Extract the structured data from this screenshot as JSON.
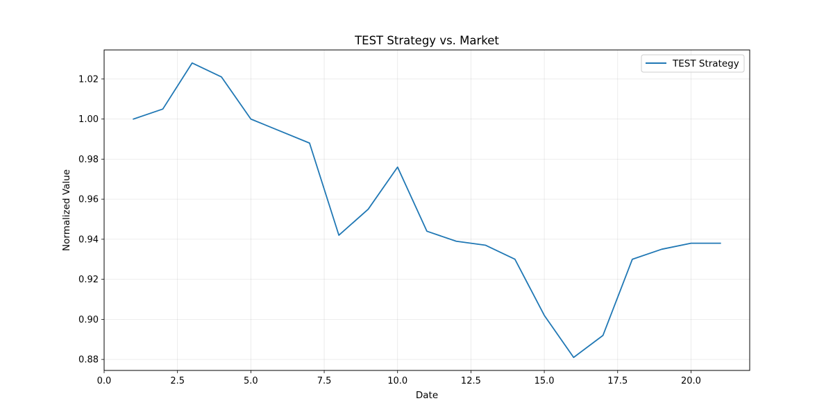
{
  "chart_data": {
    "type": "line",
    "title": "TEST Strategy vs. Market",
    "xlabel": "Date",
    "ylabel": "Normalized Value",
    "xlim": [
      0,
      22
    ],
    "ylim": [
      0.8745,
      1.0345
    ],
    "xticks": [
      0.0,
      2.5,
      5.0,
      7.5,
      10.0,
      12.5,
      15.0,
      17.5,
      20.0
    ],
    "xtick_labels": [
      "0.0",
      "2.5",
      "5.0",
      "7.5",
      "10.0",
      "12.5",
      "15.0",
      "17.5",
      "20.0"
    ],
    "yticks": [
      0.88,
      0.9,
      0.92,
      0.94,
      0.96,
      0.98,
      1.0,
      1.02
    ],
    "ytick_labels": [
      "0.88",
      "0.90",
      "0.92",
      "0.94",
      "0.96",
      "0.98",
      "1.00",
      "1.02"
    ],
    "grid": true,
    "legend_position": "top-right",
    "series": [
      {
        "name": "TEST Strategy",
        "color": "#1f77b4",
        "x": [
          1,
          2,
          3,
          4,
          5,
          6,
          7,
          8,
          9,
          10,
          11,
          12,
          13,
          14,
          15,
          16,
          17,
          18,
          19,
          20,
          21
        ],
        "y": [
          1.0,
          1.005,
          1.028,
          1.021,
          1.0,
          0.994,
          0.988,
          0.942,
          0.955,
          0.976,
          0.944,
          0.939,
          0.937,
          0.93,
          0.902,
          0.881,
          0.892,
          0.93,
          0.935,
          0.938,
          0.938
        ]
      }
    ]
  }
}
